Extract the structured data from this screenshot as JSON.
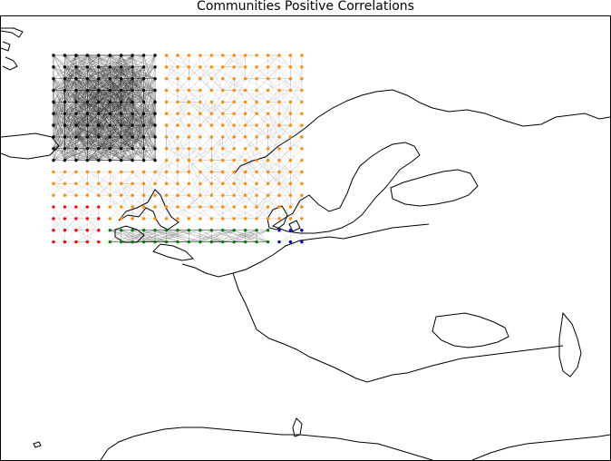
{
  "title": "Communities Positive Correlations",
  "map": {
    "type": "network-map",
    "grid": {
      "cols": 23,
      "rows": 17
    },
    "communities": [
      {
        "color": "#000000",
        "region": "north-west ocean"
      },
      {
        "color": "#ff8c00",
        "region": "north / Scandinavia"
      },
      {
        "color": "#0000cc",
        "region": "east / continental Europe"
      },
      {
        "color": "#008000",
        "region": "south-west ocean"
      },
      {
        "color": "#ff0000",
        "region": "boundaries / scattered"
      }
    ]
  }
}
